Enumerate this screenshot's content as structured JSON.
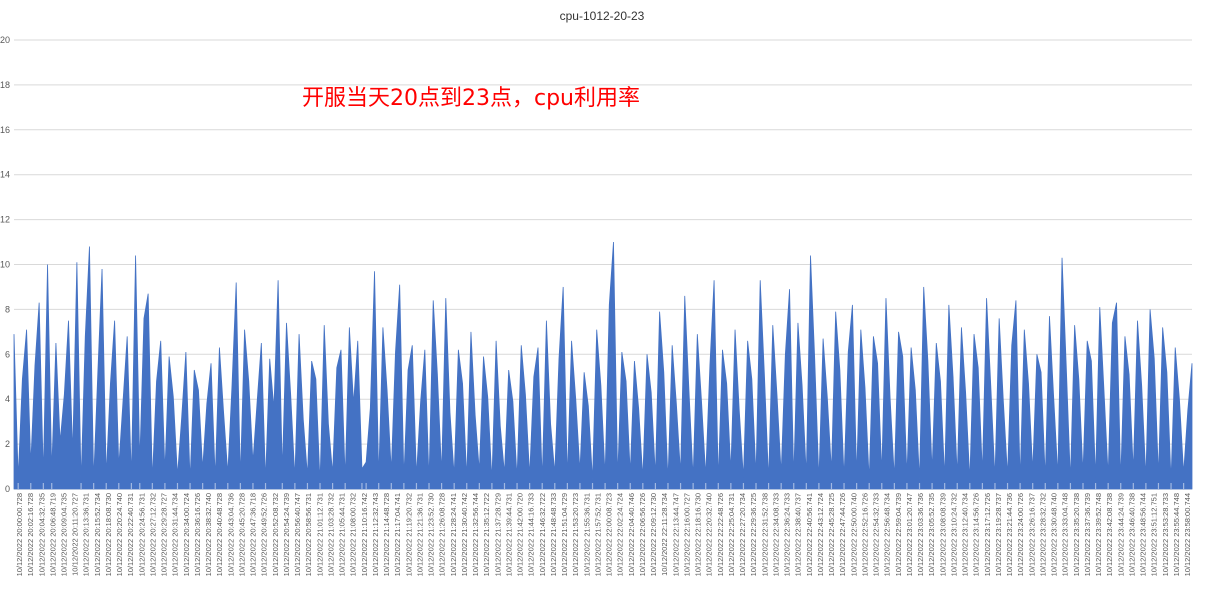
{
  "chart_data": {
    "type": "area",
    "title": "cpu-1012-20-23",
    "annotation": "开服当天20点到23点，cpu利用率",
    "ylim": [
      0,
      20
    ],
    "yticks": [
      0,
      2,
      4,
      6,
      8,
      10,
      12,
      14,
      16,
      18,
      20
    ],
    "grid": true,
    "legend": "none",
    "colors": {
      "series": "#4472c4",
      "grid": "#d9d9d9",
      "annotation": "#ff0000"
    },
    "x_tick_labels": [
      "10/12/2022 20:00:00.728",
      "10/12/2022 20:02:16.728",
      "10/12/2022 20:04:32.735",
      "10/12/2022 20:06:48.719",
      "10/12/2022 20:09:04.735",
      "10/12/2022 20:11:20.727",
      "10/12/2022 20:13:36.731",
      "10/12/2022 20:15:52.734",
      "10/12/2022 20:18:08.730",
      "10/12/2022 20:20:24.740",
      "10/12/2022 20:22:40.731",
      "10/12/2022 20:24:56.731",
      "10/12/2022 20:27:12.732",
      "10/12/2022 20:29:28.727",
      "10/12/2022 20:31:44.734",
      "10/12/2022 20:34:00.724",
      "10/12/2022 20:36:16.726",
      "10/12/2022 20:38:32.740",
      "10/12/2022 20:40:48.728",
      "10/12/2022 20:43:04.736",
      "10/12/2022 20:45:20.728",
      "10/12/2022 20:47:36.718",
      "10/12/2022 20:49:52.726",
      "10/12/2022 20:52:08.732",
      "10/12/2022 20:54:24.739",
      "10/12/2022 20:56:40.747",
      "10/12/2022 20:58:56.731",
      "10/12/2022 21:01:12.731",
      "10/12/2022 21:03:28.732",
      "10/12/2022 21:05:44.731",
      "10/12/2022 21:08:00.732",
      "10/12/2022 21:10:16.742",
      "10/12/2022 21:12:32.743",
      "10/12/2022 21:14:48.728",
      "10/12/2022 21:17:04.741",
      "10/12/2022 21:19:20.732",
      "10/12/2022 21:21:36.731",
      "10/12/2022 21:23:52.730",
      "10/12/2022 21:26:08.728",
      "10/12/2022 21:28:24.741",
      "10/12/2022 21:30:40.742",
      "10/12/2022 21:32:56.744",
      "10/12/2022 21:35:12.722",
      "10/12/2022 21:37:28.729",
      "10/12/2022 21:39:44.731",
      "10/12/2022 21:42:00.720",
      "10/12/2022 21:44:16.733",
      "10/12/2022 21:46:32.722",
      "10/12/2022 21:48:48.733",
      "10/12/2022 21:51:04.729",
      "10/12/2022 21:53:20.723",
      "10/12/2022 21:55:36.731",
      "10/12/2022 21:57:52.731",
      "10/12/2022 22:00:08.723",
      "10/12/2022 22:02:24.724",
      "10/12/2022 22:04:40.746",
      "10/12/2022 22:06:56.726",
      "10/12/2022 22:09:12.730",
      "10/12/2022 22:11:28.734",
      "10/12/2022 22:13:44.747",
      "10/12/2022 22:16:00.727",
      "10/12/2022 22:18:16.730",
      "10/12/2022 22:20:32.740",
      "10/12/2022 22:22:48.726",
      "10/12/2022 22:25:04.731",
      "10/12/2022 22:27:20.734",
      "10/12/2022 22:29:36.725",
      "10/12/2022 22:31:52.738",
      "10/12/2022 22:34:08.733",
      "10/12/2022 22:36:24.733",
      "10/12/2022 22:38:40.737",
      "10/12/2022 22:40:56.741",
      "10/12/2022 22:43:12.724",
      "10/12/2022 22:45:28.725",
      "10/12/2022 22:47:44.726",
      "10/12/2022 22:50:00.740",
      "10/12/2022 22:52:16.726",
      "10/12/2022 22:54:32.733",
      "10/12/2022 22:56:48.734",
      "10/12/2022 22:59:04.739",
      "10/12/2022 23:01:20.747",
      "10/12/2022 23:03:36.736",
      "10/12/2022 23:05:52.735",
      "10/12/2022 23:08:08.739",
      "10/12/2022 23:10:24.732",
      "10/12/2022 23:12:40.734",
      "10/12/2022 23:14:56.726",
      "10/12/2022 23:17:12.726",
      "10/12/2022 23:19:28.737",
      "10/12/2022 23:21:44.736",
      "10/12/2022 23:24:00.726",
      "10/12/2022 23:26:16.737",
      "10/12/2022 23:28:32.732",
      "10/12/2022 23:30:48.740",
      "10/12/2022 23:33:04.748",
      "10/12/2022 23:35:20.738",
      "10/12/2022 23:37:36.739",
      "10/12/2022 23:39:52.748",
      "10/12/2022 23:42:08.738",
      "10/12/2022 23:44:24.739",
      "10/12/2022 23:46:40.738",
      "10/12/2022 23:48:56.744",
      "10/12/2022 23:51:12.751",
      "10/12/2022 23:53:28.733",
      "10/12/2022 23:55:44.748",
      "10/12/2022 23:58:00.744"
    ],
    "series": [
      {
        "values": [
          6.9,
          0.5,
          4.9,
          7.1,
          1.1,
          5.5,
          8.3,
          0.6,
          10.0,
          0.8,
          6.5,
          2.1,
          4.2,
          7.5,
          1.6,
          10.1,
          0.3,
          6.8,
          10.8,
          0.4,
          5.2,
          9.8,
          0.6,
          4.7,
          7.5,
          1.0,
          3.9,
          6.8,
          0.5,
          10.4,
          1.2,
          7.6,
          8.7,
          0.4,
          4.8,
          6.6,
          0.8,
          5.9,
          4.1,
          0.6,
          3.2,
          6.1,
          0.4,
          5.3,
          4.4,
          0.9,
          3.8,
          5.6,
          0.5,
          6.3,
          3.4,
          0.7,
          4.6,
          9.2,
          0.5,
          7.1,
          4.8,
          1.2,
          3.9,
          6.5,
          0.4,
          5.8,
          3.6,
          9.3,
          0.8,
          7.4,
          4.2,
          0.5,
          6.9,
          3.1,
          0.6,
          5.7,
          4.9,
          0.3,
          7.3,
          2.9,
          0.7,
          5.4,
          6.2,
          0.5,
          7.2,
          3.8,
          6.6,
          0.9,
          1.2,
          3.6,
          9.7,
          0.5,
          7.2,
          4.4,
          0.8,
          6.1,
          9.1,
          0.5,
          5.3,
          6.4,
          0.6,
          3.9,
          6.2,
          0.4,
          8.4,
          5.1,
          0.7,
          8.5,
          3.4,
          0.6,
          6.2,
          4.7,
          0.5,
          7.0,
          3.3,
          0.8,
          5.9,
          4.1,
          0.4,
          6.6,
          2.8,
          0.7,
          5.3,
          3.9,
          0.5,
          6.4,
          4.2,
          0.6,
          5.0,
          6.3,
          0.4,
          7.5,
          2.9,
          0.7,
          5.8,
          9.0,
          0.5,
          6.6,
          4.0,
          0.8,
          5.2,
          3.7,
          0.4,
          7.1,
          4.6,
          0.6,
          8.2,
          11.0,
          0.5,
          6.1,
          4.8,
          0.7,
          5.7,
          3.6,
          0.5,
          6.0,
          4.3,
          0.6,
          7.9,
          5.2,
          0.4,
          6.4,
          3.8,
          0.7,
          8.6,
          4.4,
          0.5,
          6.9,
          3.9,
          0.6,
          5.5,
          9.3,
          0.4,
          6.2,
          4.7,
          0.8,
          7.1,
          3.5,
          0.5,
          6.6,
          4.9,
          0.6,
          9.3,
          5.1,
          0.4,
          7.3,
          4.2,
          0.7,
          6.0,
          8.9,
          0.5,
          7.4,
          4.6,
          0.6,
          10.4,
          5.8,
          0.4,
          6.7,
          4.1,
          0.8,
          7.9,
          5.3,
          0.5,
          6.1,
          8.2,
          0.6,
          7.1,
          4.5,
          0.4,
          6.8,
          5.6,
          0.7,
          8.5,
          4.0,
          0.5,
          7.0,
          5.9,
          0.6,
          6.3,
          4.4,
          0.4,
          9.0,
          5.7,
          0.8,
          6.5,
          4.8,
          0.5,
          8.2,
          5.0,
          0.6,
          7.2,
          4.3,
          0.4,
          6.9,
          5.4,
          0.7,
          8.5,
          4.6,
          0.5,
          7.6,
          3.9,
          0.6,
          6.4,
          8.4,
          0.4,
          7.1,
          4.7,
          0.8,
          6.0,
          5.2,
          0.5,
          7.7,
          4.1,
          0.6,
          10.3,
          5.5,
          0.4,
          7.3,
          4.9,
          0.7,
          6.6,
          5.7,
          0.5,
          8.1,
          4.4,
          0.6,
          7.4,
          8.3,
          0.4,
          6.8,
          5.1,
          0.8,
          7.5,
          4.6,
          0.5,
          8.0,
          5.8,
          0.6,
          7.2,
          5.2,
          0.4,
          6.3,
          4.0,
          0.7,
          3.5,
          5.6
        ]
      }
    ]
  }
}
